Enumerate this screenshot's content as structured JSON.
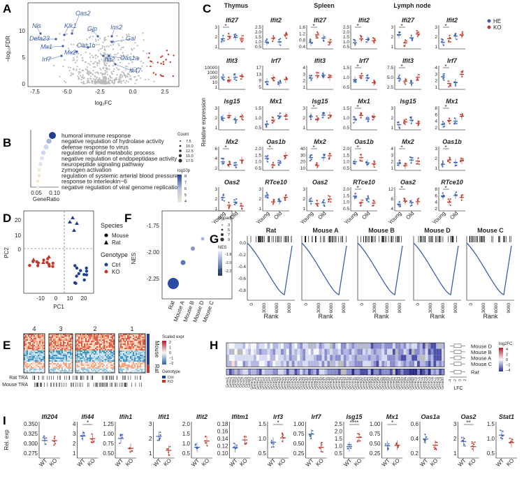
{
  "letters": {
    "A": "A",
    "B": "B",
    "C": "C",
    "D": "D",
    "E": "E",
    "F": "F",
    "G": "G",
    "H": "H",
    "I": "I"
  },
  "panelA": {
    "xlabel": "log₂FC",
    "ylabel": "−log₁₀FDR",
    "xticks": [
      "-7.5",
      "-5.0",
      "-2.5",
      "0.0",
      "2.5"
    ],
    "yticks": [
      "0",
      "5",
      "10"
    ],
    "genes": [
      "Nls",
      "Klk1",
      "Oas2",
      "Gjp",
      "Ins2",
      "Defa23",
      "Gal",
      "Mx1",
      "Oas1b",
      "Mx2",
      "Irf7",
      "Ifit2",
      "Oas1a",
      "Ifi47"
    ]
  },
  "panelB": {
    "xlabel": "GeneRatio",
    "xticks": [
      "0.05",
      "0.10"
    ],
    "terms": [
      "humoral immune response",
      "negative regulation of hydrolase activity",
      "defense response to virus",
      "regulation of lipid metabolic process",
      "negative regulation of endopeptidase activity",
      "neuropeptide signaling pathway",
      "zymogen activation",
      "regulation of systemic arterial blood pressure",
      "response to interleukin−6",
      "negative regulation of viral genome replication"
    ],
    "count_title": "Count",
    "count_vals": [
      "7.5",
      "10.0",
      "12.5",
      "15.0",
      "17.5"
    ],
    "log_title": "log10p",
    "log_vals": [
      "8",
      "7",
      "6",
      "5",
      "4"
    ]
  },
  "panelC": {
    "tissues": [
      "Thymus",
      "Spleen",
      "Lymph node"
    ],
    "ylabel": "Relative expression",
    "legend": [
      "HE",
      "KO"
    ],
    "xcats": [
      "Young",
      "Old"
    ],
    "rows": [
      {
        "genes": [
          "Ifi27",
          "Ifit2"
        ],
        "ticks": [
          [
            "3",
            "2",
            "1"
          ],
          [
            "2.5",
            "2.0",
            "1.5",
            "1.0",
            "0.5"
          ],
          [
            "1.6",
            "1.2",
            "0.8",
            "0.4"
          ],
          [
            "2.5",
            "2.0",
            "1.5",
            "1.0",
            "0.5"
          ],
          [
            "3",
            "2",
            "1"
          ],
          [
            "3",
            "2",
            "1"
          ]
        ]
      },
      {
        "genes": [
          "Ifit3",
          "Irf7"
        ],
        "ticks": [
          [
            "10000",
            "1000",
            "100",
            "10",
            "1"
          ],
          [
            "17",
            "13",
            "9",
            "5"
          ],
          [
            "4",
            "3",
            "2",
            "1"
          ],
          [
            "1.5",
            "1.0",
            "0.5"
          ],
          [
            "7.5",
            "5.0",
            "2.5"
          ],
          [
            "4",
            "3",
            "2",
            "1"
          ]
        ]
      },
      {
        "genes": [
          "Isg15",
          "Mx1"
        ],
        "ticks": [
          [
            "3",
            "2",
            "1"
          ],
          [
            "1.5",
            "1.0",
            "0.5"
          ],
          [
            "3",
            "2",
            "1"
          ],
          [
            "1.5",
            "1.0",
            "0.5"
          ],
          [
            "3",
            "2",
            "1"
          ],
          [
            "8",
            "6",
            "4",
            "2"
          ]
        ]
      },
      {
        "genes": [
          "Mx2",
          "Oas1b"
        ],
        "ticks": [
          [
            "6",
            "4",
            "2"
          ],
          [
            "2.0",
            "1.5",
            "1.0",
            "0.5"
          ],
          [
            "40",
            "30",
            "20",
            "10"
          ],
          [
            "2.0",
            "1.5",
            "1.0",
            "0.5"
          ],
          [
            "4",
            "3",
            "2",
            "1"
          ],
          [
            "3",
            "2",
            "1"
          ]
        ]
      },
      {
        "genes": [
          "Oas2",
          "RTce10"
        ],
        "ticks": [
          [
            "3",
            "2",
            "1"
          ],
          [
            "3",
            "2",
            "1"
          ],
          [
            "3",
            "2",
            "1"
          ],
          [
            "2.0",
            "1.5",
            "1.0",
            "0.5"
          ],
          [
            "12",
            "8",
            "4"
          ],
          [
            "8",
            "6",
            "4",
            "2"
          ]
        ]
      }
    ]
  },
  "panelD": {
    "xlabel": "PC1",
    "ylabel": "PC2",
    "xticks": [
      "-10",
      "0",
      "10",
      "20"
    ],
    "yticks": [
      "20",
      "10",
      "0"
    ],
    "species_title": "Species",
    "species": [
      "Mouse",
      "Rat"
    ],
    "genotype_title": "Genotype",
    "genotype": [
      "Ctrl",
      "KO"
    ]
  },
  "panelE": {
    "clusters": [
      "4",
      "3",
      "2",
      "1"
    ],
    "side": [
      "Mouse",
      "Rat"
    ],
    "scaled_title": "Scaled expr",
    "scaled_vals": [
      "2",
      "1",
      "0",
      "−1",
      "−2"
    ],
    "genotype_title": "Genotype",
    "genotype": [
      "Ctrl",
      "KO"
    ],
    "tra": [
      "Rat TRA",
      "Mouse TRA"
    ]
  },
  "panelF": {
    "ylabel": "NES",
    "yticks": [
      "-1.75",
      "-2.00",
      "-2.25"
    ],
    "cats": [
      "Rat",
      "Mouse A",
      "Mouse B",
      "Mouse D",
      "Mouse C"
    ],
    "padj_title": "logpadj",
    "padj_vals": [
      "3",
      "5",
      "7",
      "9"
    ],
    "nes_title": "NES",
    "nes_vals": [
      "-1.8",
      "-2.0",
      "-2.2"
    ]
  },
  "panelG": {
    "titles": [
      "Rat",
      "Mouse A",
      "Mouse B",
      "Mouse D",
      "Mouse C"
    ],
    "ylabel": "ES",
    "xlabel": "Rank",
    "yticks": [
      "0.0",
      "-0.2",
      "-0.4",
      "-0.6",
      "-0.8"
    ],
    "xticks": [
      "0",
      "3000",
      "6000",
      "9000"
    ]
  },
  "panelH": {
    "rows": [
      "Mouse D",
      "Mouse B",
      "Mouse A",
      "Mouse C",
      "Rat"
    ],
    "lfc_label": "LFC",
    "lfc_ticks": [
      "-4",
      "-2",
      "0",
      "2"
    ],
    "legend_title": "log2FC",
    "legend_vals": [
      "4",
      "2",
      "0",
      "−2",
      "−4"
    ]
  },
  "panelI": {
    "ylabel": "Rel. exp",
    "xcats": [
      "WT",
      "KO"
    ],
    "genes": [
      "Ifi204",
      "Ifi44",
      "Ifih1",
      "Ifit1",
      "Ifit2",
      "Ifitm1",
      "Irf3",
      "Irf7",
      "Isg15",
      "Mx1",
      "Oas1a",
      "Oas2",
      "Stat1"
    ],
    "ticks": [
      [
        "0.350",
        "0.325",
        "0.300",
        "0.275"
      ],
      [
        "4",
        "3",
        "2",
        "1"
      ],
      [
        "1.25",
        "1.00",
        "0.75",
        "0.50"
      ],
      [
        "3",
        "2",
        "1"
      ],
      [
        "2.0",
        "1.5",
        "1.0",
        "0.5"
      ],
      [
        "0.18",
        "0.16",
        "0.14",
        "0.12",
        "0.10"
      ],
      [
        "1.5",
        "1.0",
        "0.5"
      ],
      [
        "1.00",
        "0.75",
        "0.50",
        "0.25"
      ],
      [
        "2.5",
        "2.0",
        "1.5",
        "1.0",
        "0.5"
      ],
      [
        "1.00",
        "0.75",
        "0.50",
        "0.25"
      ],
      [
        "0.6",
        "0.4",
        "0.2"
      ],
      [
        "3",
        "2",
        "1"
      ],
      [
        "1.5",
        "1.0",
        "0.5"
      ]
    ],
    "sig": [
      "",
      "*",
      "",
      "",
      "",
      "",
      "*",
      "",
      "****",
      "*",
      "",
      "**",
      ""
    ]
  },
  "colors": {
    "blue": "#3a5fb0",
    "red": "#c0392b",
    "grey": "#bbbbbb",
    "navy": "#1f3f8f"
  }
}
